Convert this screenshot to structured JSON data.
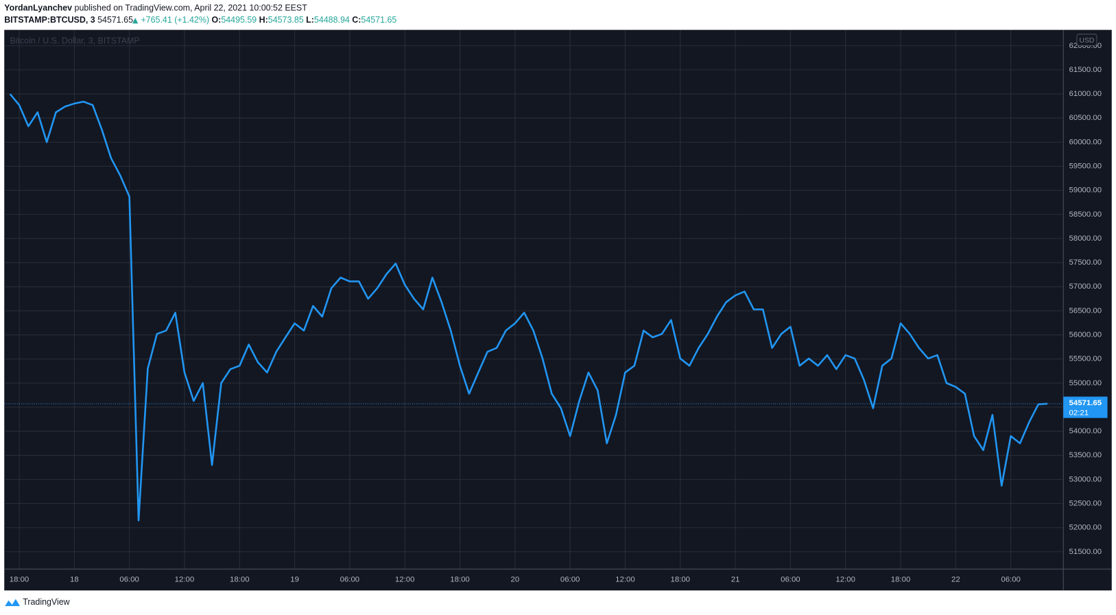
{
  "chart_data": {
    "type": "line",
    "header": {
      "author": "YordanLyanchev",
      "published": "published on TradingView.com, April 22, 2021 10:00:52 EEST",
      "symbol": "BITSTAMP:BTCUSD, 3",
      "price": "54571.65",
      "change": "+765.41 (+1.42%)",
      "o_label": "O:",
      "open": "54495.59",
      "h_label": "H:",
      "high": "54573.85",
      "l_label": "L:",
      "low": "54488.94",
      "c_label": "C:",
      "close": "54571.65"
    },
    "watermark": "Bitcoin / U.S. Dollar, 3, BITSTAMP",
    "currency": "USD",
    "countdown": "02:21",
    "brand": "TradingView",
    "color": "#2196f3",
    "grid": true,
    "categories": [
      null,
      "18:00",
      null,
      null,
      null,
      null,
      null,
      "18",
      null,
      null,
      null,
      null,
      null,
      "06:00",
      null,
      null,
      null,
      null,
      null,
      "12:00",
      null,
      null,
      null,
      null,
      null,
      "18:00",
      null,
      null,
      null,
      null,
      null,
      "19",
      null,
      null,
      null,
      null,
      null,
      "06:00",
      null,
      null,
      null,
      null,
      null,
      "12:00",
      null,
      null,
      null,
      null,
      null,
      "18:00",
      null,
      null,
      null,
      null,
      null,
      "20",
      null,
      null,
      null,
      null,
      null,
      "06:00",
      null,
      null,
      null,
      null,
      null,
      "12:00",
      null,
      null,
      null,
      null,
      null,
      "18:00",
      null,
      null,
      null,
      null,
      null,
      "21",
      null,
      null,
      null,
      null,
      null,
      "06:00",
      null,
      null,
      null,
      null,
      null,
      "12:00",
      null,
      null,
      null,
      null,
      null,
      "18:00",
      null,
      null,
      null,
      null,
      null,
      "22",
      null,
      null,
      null,
      null,
      null,
      "06:00",
      null,
      null,
      null,
      null
    ],
    "values": [
      61000,
      60770,
      60330,
      60620,
      60000,
      60620,
      60740,
      60800,
      60840,
      60770,
      60260,
      59670,
      59310,
      58870,
      52150,
      55300,
      56020,
      56090,
      56460,
      55220,
      54630,
      55000,
      53300,
      55000,
      55290,
      55360,
      55800,
      55430,
      55220,
      55650,
      55950,
      56240,
      56090,
      56600,
      56380,
      56970,
      57190,
      57110,
      57110,
      56750,
      56970,
      57260,
      57480,
      57040,
      56750,
      56530,
      57190,
      56680,
      56090,
      55360,
      54780,
      55220,
      55650,
      55730,
      56090,
      56240,
      56460,
      56090,
      55510,
      54780,
      54480,
      53900,
      54630,
      55220,
      54850,
      53750,
      54340,
      55220,
      55360,
      56090,
      55950,
      56020,
      56310,
      55510,
      55360,
      55730,
      56020,
      56380,
      56680,
      56820,
      56900,
      56530,
      56530,
      55730,
      56020,
      56170,
      55360,
      55510,
      55360,
      55580,
      55290,
      55580,
      55510,
      55070,
      54480,
      55360,
      55510,
      56240,
      56020,
      55730,
      55510,
      55580,
      55000,
      54920,
      54780,
      53900,
      53610,
      54340,
      52870,
      53900,
      53750,
      54190,
      54560,
      54571.65
    ],
    "ylim": [
      51140,
      62330
    ],
    "yticks": [
      {
        "value": 51500,
        "label": "51500.00"
      },
      {
        "value": 52000,
        "label": "52000.00"
      },
      {
        "value": 52500,
        "label": "52500.00"
      },
      {
        "value": 53000,
        "label": "53000.00"
      },
      {
        "value": 53500,
        "label": "53500.00"
      },
      {
        "value": 54000,
        "label": "54000.00"
      },
      {
        "value": 54500,
        "label": "54500.00"
      },
      {
        "value": 55000,
        "label": "55000.00"
      },
      {
        "value": 55500,
        "label": "55500.00"
      },
      {
        "value": 56000,
        "label": "56000.00"
      },
      {
        "value": 56500,
        "label": "56500.00"
      },
      {
        "value": 57000,
        "label": "57000.00"
      },
      {
        "value": 57500,
        "label": "57500.00"
      },
      {
        "value": 58000,
        "label": "58000.00"
      },
      {
        "value": 58500,
        "label": "58500.00"
      },
      {
        "value": 59000,
        "label": "59000.00"
      },
      {
        "value": 59500,
        "label": "59500.00"
      },
      {
        "value": 60000,
        "label": "60000.00"
      },
      {
        "value": 60500,
        "label": "60500.00"
      },
      {
        "value": 61000,
        "label": "61000.00"
      },
      {
        "value": 61500,
        "label": "61500.00"
      },
      {
        "value": 62000,
        "label": "62000.00"
      }
    ]
  }
}
